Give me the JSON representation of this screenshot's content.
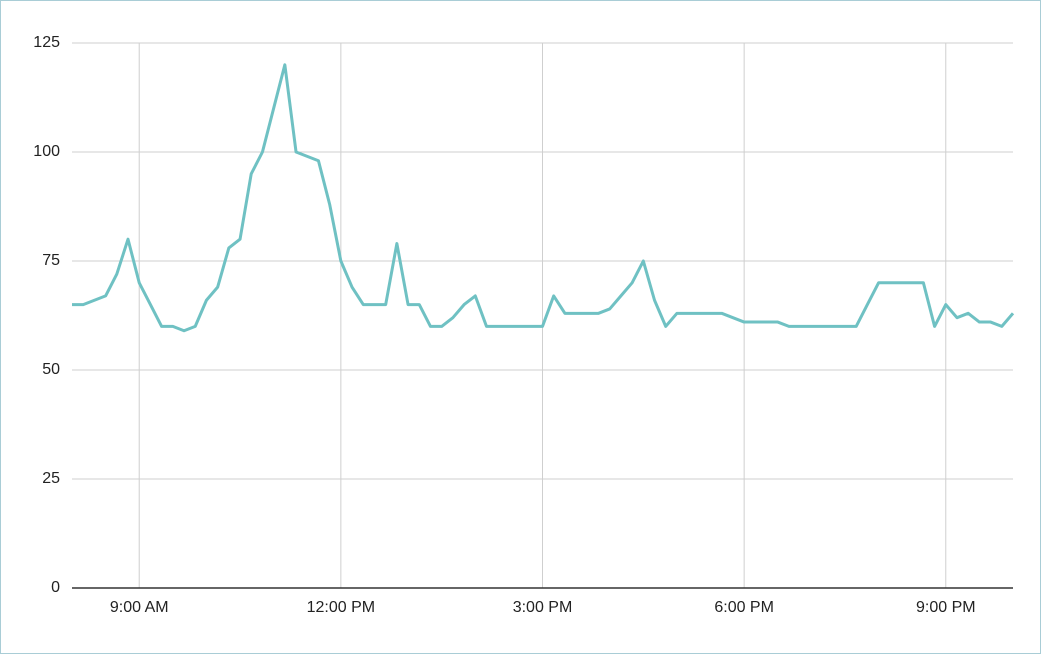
{
  "chart_data": {
    "type": "line",
    "x": [
      "08:00",
      "08:10",
      "08:20",
      "08:30",
      "08:40",
      "08:50",
      "09:00",
      "09:10",
      "09:20",
      "09:30",
      "09:40",
      "09:50",
      "10:00",
      "10:10",
      "10:20",
      "10:30",
      "10:40",
      "10:50",
      "11:00",
      "11:10",
      "11:20",
      "11:30",
      "11:40",
      "11:50",
      "12:00",
      "12:10",
      "12:20",
      "12:30",
      "12:40",
      "12:50",
      "13:00",
      "13:10",
      "13:20",
      "13:30",
      "13:40",
      "13:50",
      "14:00",
      "14:10",
      "14:20",
      "14:30",
      "14:40",
      "14:50",
      "15:00",
      "15:10",
      "15:20",
      "15:30",
      "15:40",
      "15:50",
      "16:00",
      "16:10",
      "16:20",
      "16:30",
      "16:40",
      "16:50",
      "17:00",
      "17:10",
      "17:20",
      "17:30",
      "17:40",
      "17:50",
      "18:00",
      "18:10",
      "18:20",
      "18:30",
      "18:40",
      "18:50",
      "19:00",
      "19:10",
      "19:20",
      "19:30",
      "19:40",
      "19:50",
      "20:00",
      "20:10",
      "20:20",
      "20:30",
      "20:40",
      "20:50",
      "21:00",
      "21:10",
      "21:20",
      "21:30",
      "21:40",
      "21:50",
      "22:00"
    ],
    "series": [
      {
        "color": "#6fc1c3",
        "values": [
          65,
          65,
          66,
          67,
          72,
          80,
          70,
          65,
          60,
          60,
          59,
          60,
          66,
          69,
          78,
          80,
          95,
          100,
          110,
          120,
          100,
          99,
          98,
          88,
          75,
          69,
          65,
          65,
          65,
          79,
          65,
          65,
          60,
          60,
          62,
          65,
          67,
          60,
          60,
          60,
          60,
          60,
          60,
          67,
          63,
          63,
          63,
          63,
          64,
          67,
          70,
          75,
          66,
          60,
          63,
          63,
          63,
          63,
          63,
          62,
          61,
          61,
          61,
          61,
          60,
          60,
          60,
          60,
          60,
          60,
          60,
          65,
          70,
          70,
          70,
          70,
          70,
          60,
          65,
          62,
          63,
          61,
          61,
          60,
          63
        ]
      }
    ],
    "xlim": [
      "08:00",
      "22:00"
    ],
    "xticks": [
      {
        "value": "09:00",
        "label": "9:00 AM"
      },
      {
        "value": "12:00",
        "label": "12:00 PM"
      },
      {
        "value": "15:00",
        "label": "3:00 PM"
      },
      {
        "value": "18:00",
        "label": "6:00 PM"
      },
      {
        "value": "21:00",
        "label": "9:00 PM"
      }
    ],
    "ylim": [
      0,
      125
    ],
    "yticks": [
      0,
      25,
      50,
      75,
      100,
      125
    ],
    "grid": true
  }
}
